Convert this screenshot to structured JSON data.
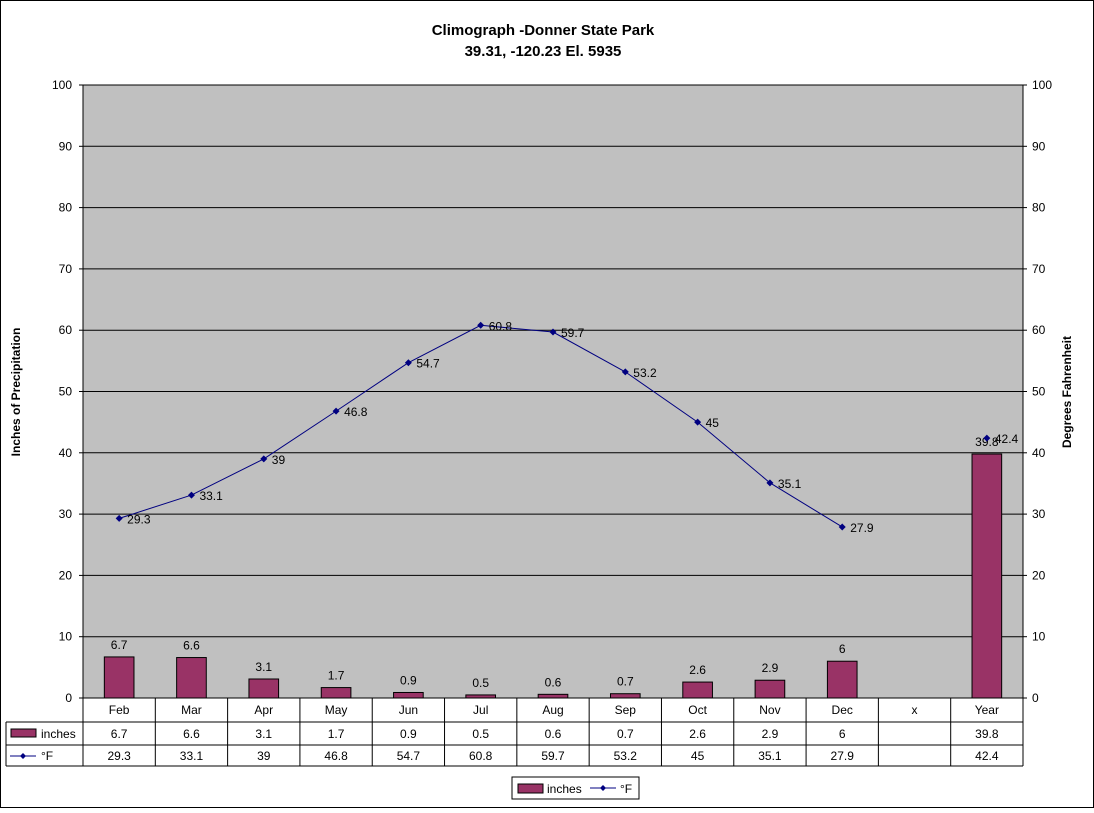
{
  "chart_data": {
    "type": "bar",
    "title": "Climograph -Donner State Park",
    "subtitle": "39.31, -120.23  El. 5935",
    "ylabel": "Inches of Precipitation",
    "y2label": "Degrees Fahrenheit",
    "xlabel": "",
    "ylim": [
      0,
      100
    ],
    "y2lim": [
      0,
      100
    ],
    "yticks": [
      0,
      10,
      20,
      30,
      40,
      50,
      60,
      70,
      80,
      90,
      100
    ],
    "grid": true,
    "legend": "bottom",
    "categories": [
      "Feb",
      "Mar",
      "Apr",
      "May",
      "Jun",
      "Jul",
      "Aug",
      "Sep",
      "Oct",
      "Nov",
      "Dec",
      "x",
      "Year"
    ],
    "series": [
      {
        "name": "inches",
        "type": "bar",
        "axis": "left",
        "color": "#993366",
        "values": [
          6.7,
          6.6,
          3.1,
          1.7,
          0.9,
          0.5,
          0.6,
          0.7,
          2.6,
          2.9,
          6,
          null,
          39.8
        ],
        "labels": [
          "6.7",
          "6.6",
          "3.1",
          "1.7",
          "0.9",
          "0.5",
          "0.6",
          "0.7",
          "2.6",
          "2.9",
          "6",
          "",
          "39.8"
        ]
      },
      {
        "name": "°F",
        "type": "line",
        "axis": "right",
        "color": "#000080",
        "values": [
          29.3,
          33.1,
          39,
          46.8,
          54.7,
          60.8,
          59.7,
          53.2,
          45,
          35.1,
          27.9,
          null,
          42.4
        ],
        "labels": [
          "29.3",
          "33.1",
          "39",
          "46.8",
          "54.7",
          "60.8",
          "59.7",
          "53.2",
          "45",
          "35.1",
          "27.9",
          "",
          "42.4"
        ]
      }
    ],
    "plot_background": "#c0c0c0"
  }
}
